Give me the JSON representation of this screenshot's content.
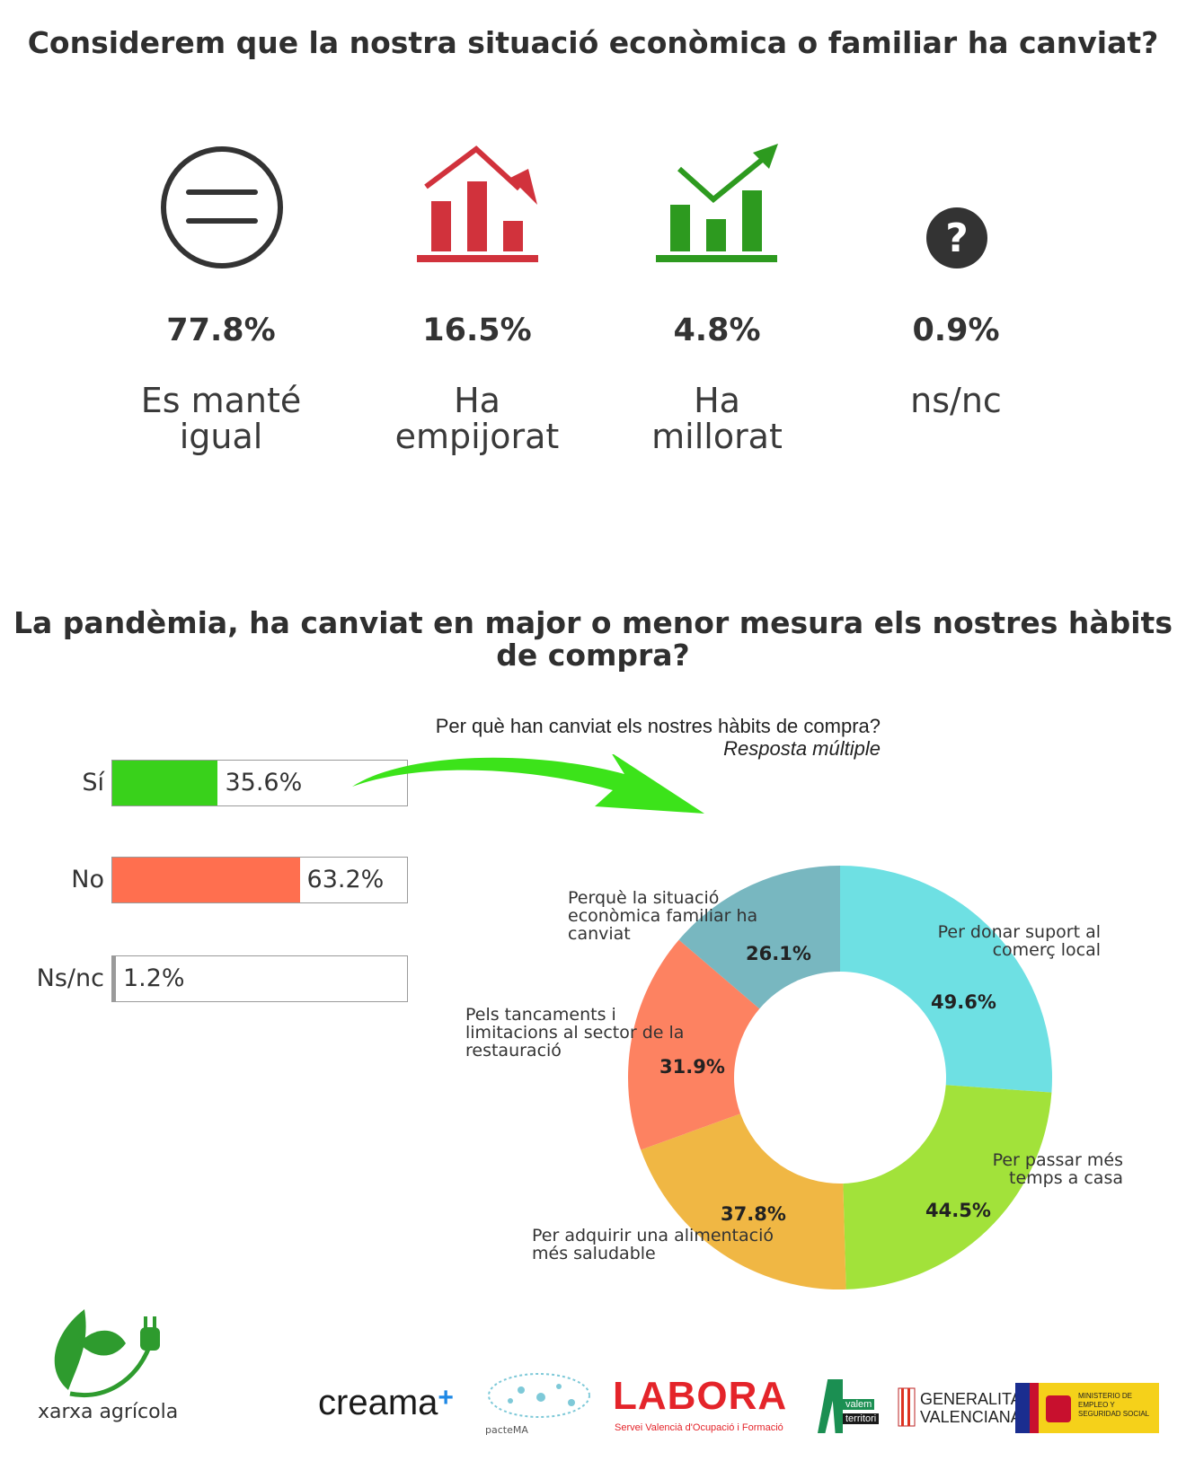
{
  "section1": {
    "title": "Considerem que la nostra situació econòmica o familiar ha canviat?",
    "items": [
      {
        "pct": "77.8%",
        "label": "Es manté igual",
        "icon": "equal-circle-icon"
      },
      {
        "pct": "16.5%",
        "label": "Ha empijorat",
        "icon": "declining-bar-chart-icon"
      },
      {
        "pct": "4.8%",
        "label": "Ha millorat",
        "icon": "rising-bar-chart-icon"
      },
      {
        "pct": "0.9%",
        "label": "ns/nc",
        "icon": "question-mark-icon"
      }
    ]
  },
  "section2": {
    "title": "La pandèmia, ha canviat en major o menor mesura els nostres hàbits de compra?"
  },
  "chart_data": [
    {
      "type": "bar",
      "orientation": "horizontal",
      "categories": [
        "Sí",
        "No",
        "Ns/nc"
      ],
      "values": [
        35.6,
        63.2,
        1.2
      ],
      "value_labels": [
        "35.6%",
        "63.2%",
        "1.2%"
      ],
      "colors": [
        "#39d11b",
        "#ff6f4f",
        "#9a9a9a"
      ],
      "xlim": [
        0,
        100
      ]
    },
    {
      "type": "pie",
      "title": "Per què han canviat els nostres hàbits de compra?",
      "subtitle": "Resposta múltiple",
      "donut": true,
      "categories": [
        "Per donar suport al comerç local",
        "Per passar més temps a casa",
        "Per adquirir una alimentació més saludable",
        "Pels tancaments i limitacions al sector de la restauració",
        "Perquè la situació econòmica familiar ha canviat"
      ],
      "values": [
        49.6,
        44.5,
        37.8,
        31.9,
        26.1
      ],
      "value_labels": [
        "49.6%",
        "44.5%",
        "37.8%",
        "31.9%",
        "26.1%"
      ],
      "colors": [
        "#6ee0e3",
        "#a2e23a",
        "#f0b744",
        "#fd8261",
        "#78b7c0"
      ]
    }
  ],
  "colors": {
    "declining": "#d1323c",
    "rising": "#2d9a1f",
    "dark": "#333333",
    "arrow": "#3ce31a"
  },
  "footer": {
    "brand": "xarxa agrícola",
    "logos": {
      "creama": "creama",
      "plus": "+",
      "pactema": "pacteMA",
      "labora": "LABORA",
      "labora_sub": "Servei Valencià d'Ocupació i Formació",
      "valem": "valem",
      "territori": "territori",
      "generalitat_1": "GENERALITAT",
      "generalitat_2": "VALENCIANA",
      "ministerio": "MINISTERIO DE EMPLEO Y SEGURIDAD SOCIAL"
    }
  }
}
